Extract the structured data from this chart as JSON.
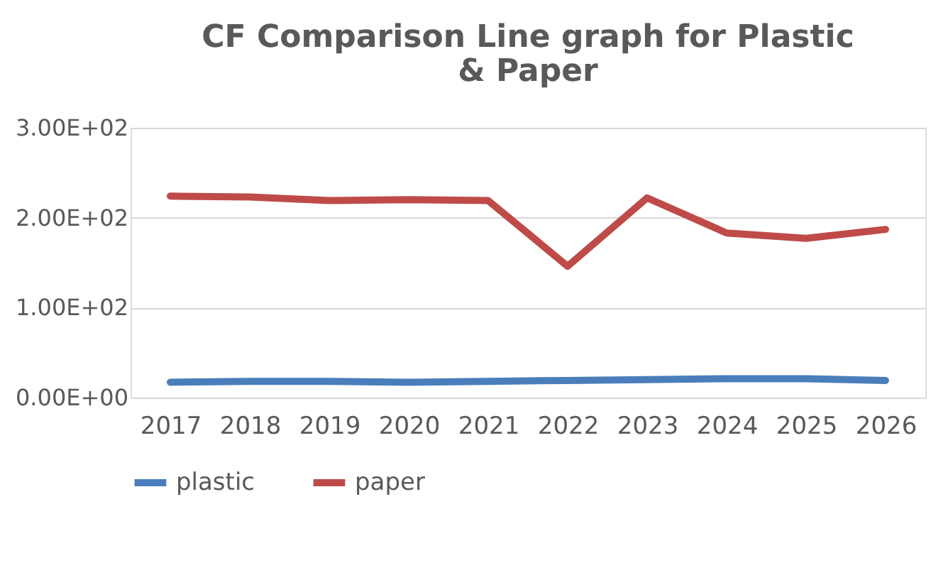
{
  "chart_data": {
    "type": "line",
    "title": "CF Comparison Line graph for Plastic & Paper",
    "categories": [
      "2017",
      "2018",
      "2019",
      "2020",
      "2021",
      "2022",
      "2023",
      "2024",
      "2025",
      "2026"
    ],
    "series": [
      {
        "name": "plastic",
        "color": "#4a7ebb",
        "values": [
          17,
          18,
          18,
          17,
          18,
          19,
          20,
          21,
          21,
          19
        ]
      },
      {
        "name": "paper",
        "color": "#be4b48",
        "values": [
          224,
          223,
          219,
          220,
          219,
          146,
          222,
          183,
          177,
          187
        ]
      }
    ],
    "ylim": [
      0,
      300
    ],
    "yticks": [
      {
        "value": 0,
        "label": "0.00E+00"
      },
      {
        "value": 100,
        "label": "1.00E+02"
      },
      {
        "value": 200,
        "label": "2.00E+02"
      },
      {
        "value": 300,
        "label": "3.00E+02"
      }
    ],
    "grid": "y",
    "legend": "bottom",
    "marker": "none",
    "line_style": "solid"
  }
}
